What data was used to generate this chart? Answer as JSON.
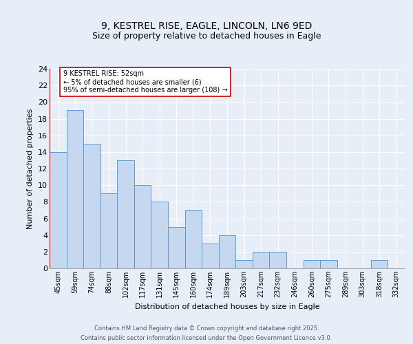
{
  "title1": "9, KESTREL RISE, EAGLE, LINCOLN, LN6 9ED",
  "title2": "Size of property relative to detached houses in Eagle",
  "xlabel": "Distribution of detached houses by size in Eagle",
  "ylabel": "Number of detached properties",
  "categories": [
    "45sqm",
    "59sqm",
    "74sqm",
    "88sqm",
    "102sqm",
    "117sqm",
    "131sqm",
    "145sqm",
    "160sqm",
    "174sqm",
    "189sqm",
    "203sqm",
    "217sqm",
    "232sqm",
    "246sqm",
    "260sqm",
    "275sqm",
    "289sqm",
    "303sqm",
    "318sqm",
    "332sqm"
  ],
  "values": [
    14,
    19,
    15,
    9,
    13,
    10,
    8,
    5,
    7,
    3,
    4,
    1,
    2,
    2,
    0,
    1,
    1,
    0,
    0,
    1,
    0
  ],
  "bar_color": "#c5d8f0",
  "bar_edge_color": "#5b9bd5",
  "ylim": [
    0,
    24
  ],
  "yticks": [
    0,
    2,
    4,
    6,
    8,
    10,
    12,
    14,
    16,
    18,
    20,
    22,
    24
  ],
  "vline_color": "#cc0000",
  "annotation_text": "9 KESTREL RISE: 52sqm\n← 5% of detached houses are smaller (6)\n95% of semi-detached houses are larger (108) →",
  "annotation_box_color": "#ffffff",
  "annotation_box_edge": "#cc0000",
  "footer1": "Contains HM Land Registry data © Crown copyright and database right 2025.",
  "footer2": "Contains public sector information licensed under the Open Government Licence v3.0.",
  "bg_color": "#e8eef8",
  "grid_color": "#ffffff"
}
